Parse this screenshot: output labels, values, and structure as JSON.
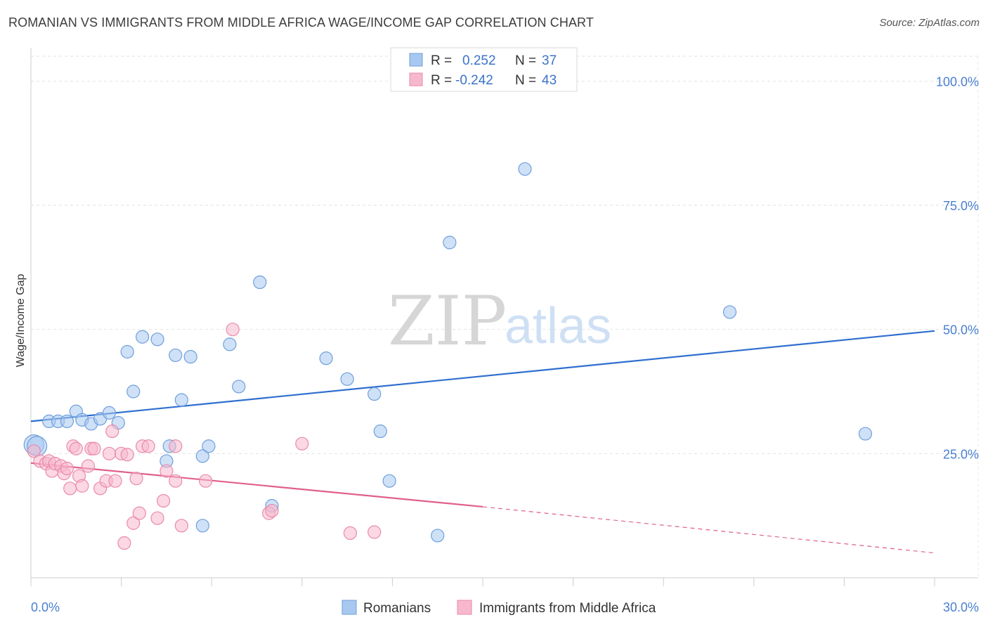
{
  "header": {
    "title": "ROMANIAN VS IMMIGRANTS FROM MIDDLE AFRICA WAGE/INCOME GAP CORRELATION CHART",
    "source": "Source: ZipAtlas.com"
  },
  "watermark": {
    "zip": "ZIP",
    "atlas": "atlas"
  },
  "legend": {
    "rows": [
      {
        "r_label": "R =",
        "r_value": "0.252",
        "n_label": "N =",
        "n_value": "37",
        "color": "#a8c8f0"
      },
      {
        "r_label": "R =",
        "r_value": "-0.242",
        "n_label": "N =",
        "n_value": "43",
        "color": "#f7b8cc"
      }
    ]
  },
  "chart_data": {
    "type": "scatter",
    "title": "ROMANIAN VS IMMIGRANTS FROM MIDDLE AFRICA WAGE/INCOME GAP CORRELATION CHART",
    "xlabel": "",
    "ylabel": "Wage/Income Gap",
    "xlim": [
      0,
      30
    ],
    "ylim": [
      0,
      105
    ],
    "x_tick_labels": [
      "0.0%",
      "30.0%"
    ],
    "y_ticks": [
      25,
      50,
      75,
      100
    ],
    "y_tick_labels": [
      "25.0%",
      "50.0%",
      "75.0%",
      "100.0%"
    ],
    "grid": true,
    "series": [
      {
        "name": "Romanians",
        "color": "#a8c8f0",
        "stroke": "#6f9fdc",
        "trend_color": "#2f6fcf",
        "points": [
          [
            0.1,
            26.8
          ],
          [
            0.2,
            26.5
          ],
          [
            0.6,
            31.5
          ],
          [
            0.9,
            31.5
          ],
          [
            1.2,
            31.5
          ],
          [
            1.5,
            33.5
          ],
          [
            1.7,
            31.8
          ],
          [
            2.0,
            31.0
          ],
          [
            2.3,
            32.0
          ],
          [
            2.6,
            33.2
          ],
          [
            2.9,
            31.2
          ],
          [
            3.2,
            45.5
          ],
          [
            3.4,
            37.5
          ],
          [
            3.7,
            48.5
          ],
          [
            4.2,
            48.0
          ],
          [
            4.5,
            23.5
          ],
          [
            4.6,
            26.5
          ],
          [
            4.8,
            44.8
          ],
          [
            5.0,
            35.8
          ],
          [
            5.3,
            44.5
          ],
          [
            5.7,
            24.5
          ],
          [
            5.7,
            10.5
          ],
          [
            5.9,
            26.5
          ],
          [
            6.6,
            47.0
          ],
          [
            6.9,
            38.5
          ],
          [
            7.6,
            59.5
          ],
          [
            8.0,
            14.5
          ],
          [
            9.8,
            44.2
          ],
          [
            10.5,
            40.0
          ],
          [
            11.4,
            37.0
          ],
          [
            11.6,
            29.5
          ],
          [
            11.9,
            19.5
          ],
          [
            13.5,
            8.5
          ],
          [
            13.9,
            67.5
          ],
          [
            16.4,
            82.3
          ],
          [
            23.2,
            53.5
          ],
          [
            27.7,
            29.0
          ]
        ],
        "trend": {
          "x": [
            0,
            30
          ],
          "y": [
            31.5,
            49.7
          ]
        }
      },
      {
        "name": "Immigrants from Middle Africa",
        "color": "#f7b8cc",
        "stroke": "#e98aaa",
        "trend_color": "#e0608a",
        "points": [
          [
            0.1,
            25.5
          ],
          [
            0.3,
            23.5
          ],
          [
            0.5,
            23.0
          ],
          [
            0.6,
            23.5
          ],
          [
            0.7,
            21.5
          ],
          [
            0.8,
            23.0
          ],
          [
            1.0,
            22.5
          ],
          [
            1.1,
            21.0
          ],
          [
            1.2,
            22.0
          ],
          [
            1.3,
            18.0
          ],
          [
            1.4,
            26.5
          ],
          [
            1.5,
            26.0
          ],
          [
            1.6,
            20.5
          ],
          [
            1.7,
            18.5
          ],
          [
            1.9,
            22.5
          ],
          [
            2.0,
            26.0
          ],
          [
            2.1,
            26.0
          ],
          [
            2.3,
            18.0
          ],
          [
            2.5,
            19.5
          ],
          [
            2.6,
            25.0
          ],
          [
            2.7,
            29.5
          ],
          [
            2.8,
            19.5
          ],
          [
            3.0,
            25.0
          ],
          [
            3.1,
            7.0
          ],
          [
            3.2,
            24.8
          ],
          [
            3.4,
            11.0
          ],
          [
            3.5,
            20.0
          ],
          [
            3.6,
            13.0
          ],
          [
            3.7,
            26.5
          ],
          [
            3.9,
            26.5
          ],
          [
            4.2,
            12.0
          ],
          [
            4.4,
            15.5
          ],
          [
            4.5,
            21.5
          ],
          [
            4.8,
            26.5
          ],
          [
            4.8,
            19.5
          ],
          [
            5.0,
            10.5
          ],
          [
            5.8,
            19.5
          ],
          [
            6.7,
            50.0
          ],
          [
            7.9,
            13.0
          ],
          [
            8.0,
            13.5
          ],
          [
            9.0,
            27.0
          ],
          [
            10.6,
            9.0
          ],
          [
            11.4,
            9.2
          ]
        ],
        "trend": {
          "x": [
            0,
            15
          ],
          "y": [
            23.1,
            14.3
          ]
        },
        "trend_extension": {
          "x": [
            15,
            30
          ],
          "y": [
            14.3,
            5.0
          ]
        }
      }
    ]
  }
}
